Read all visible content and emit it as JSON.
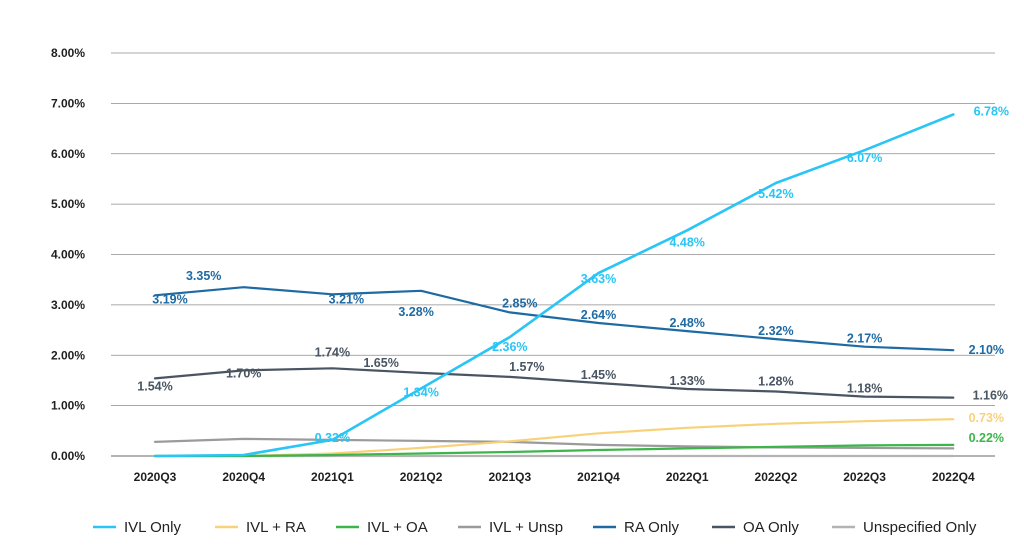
{
  "chart_data": {
    "type": "line",
    "title": "",
    "xlabel": "",
    "ylabel": "",
    "ylim": [
      0,
      8
    ],
    "yticks": [
      "0.00%",
      "1.00%",
      "2.00%",
      "3.00%",
      "4.00%",
      "5.00%",
      "6.00%",
      "7.00%",
      "8.00%"
    ],
    "categories": [
      "2020Q3",
      "2020Q4",
      "2021Q1",
      "2021Q2",
      "2021Q3",
      "2021Q4",
      "2022Q1",
      "2022Q2",
      "2022Q3",
      "2022Q4"
    ],
    "legend_position": "bottom",
    "series": [
      {
        "key": "ivl_only",
        "name": "IVL Only",
        "color": "#29c5f6",
        "values": [
          0.0,
          0.02,
          0.32,
          1.34,
          2.36,
          3.63,
          4.48,
          5.42,
          6.07,
          6.78
        ],
        "labels": [
          null,
          null,
          "0.32%",
          "1.34%",
          "2.36%",
          "3.63%",
          "4.48%",
          "5.42%",
          "6.07%",
          "6.78%"
        ]
      },
      {
        "key": "ivl_ra",
        "name": "IVL + RA",
        "color": "#f7d27a",
        "values": [
          0.0,
          0.0,
          0.05,
          0.16,
          0.29,
          0.45,
          0.56,
          0.64,
          0.69,
          0.73
        ],
        "labels": [
          null,
          null,
          null,
          null,
          null,
          null,
          null,
          null,
          null,
          "0.73%"
        ]
      },
      {
        "key": "ivl_oa",
        "name": "IVL + OA",
        "color": "#3db54a",
        "values": [
          0.0,
          0.0,
          0.02,
          0.05,
          0.08,
          0.12,
          0.15,
          0.18,
          0.21,
          0.22
        ],
        "labels": [
          null,
          null,
          null,
          null,
          null,
          null,
          null,
          null,
          null,
          "0.22%"
        ]
      },
      {
        "key": "ivl_unsp",
        "name": "IVL + Unsp",
        "color": "#9b9b9b",
        "values": [
          0.28,
          0.34,
          0.32,
          0.3,
          0.28,
          0.22,
          0.19,
          0.17,
          0.16,
          0.15
        ],
        "labels": [
          null,
          null,
          null,
          null,
          null,
          null,
          null,
          null,
          null,
          null
        ]
      },
      {
        "key": "ra_only",
        "name": "RA Only",
        "color": "#1e6aa3",
        "values": [
          3.19,
          3.35,
          3.21,
          3.28,
          2.85,
          2.64,
          2.48,
          2.32,
          2.17,
          2.1
        ],
        "labels": [
          "3.19%",
          "3.35%",
          "3.21%",
          "3.28%",
          "2.85%",
          "2.64%",
          "2.48%",
          "2.32%",
          "2.17%",
          "2.10%"
        ]
      },
      {
        "key": "oa_only",
        "name": "OA Only",
        "color": "#4a5563",
        "values": [
          1.54,
          1.7,
          1.74,
          1.65,
          1.57,
          1.45,
          1.33,
          1.28,
          1.18,
          1.16
        ],
        "labels": [
          "1.54%",
          "1.70%",
          "1.74%",
          "1.65%",
          "1.57%",
          "1.45%",
          "1.33%",
          "1.28%",
          "1.18%",
          "1.16%"
        ]
      },
      {
        "key": "unspecified_only",
        "name": "Unspecified Only",
        "color": "#b3b3b3",
        "values": [
          0.0,
          0.0,
          0.0,
          0.0,
          0.0,
          0.0,
          0.0,
          0.0,
          0.0,
          0.0
        ],
        "labels": [
          null,
          null,
          null,
          null,
          null,
          null,
          null,
          null,
          null,
          null
        ]
      }
    ],
    "legend_order": [
      "ivl_only",
      "ivl_ra",
      "ivl_oa",
      "ivl_unsp",
      "ra_only",
      "oa_only",
      "unspecified_only"
    ]
  }
}
